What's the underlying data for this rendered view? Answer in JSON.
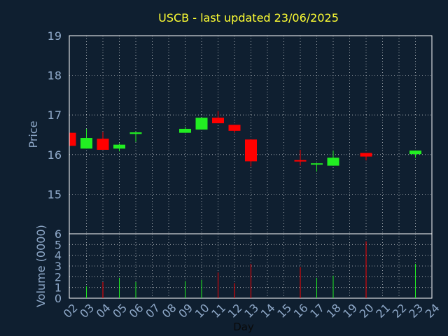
{
  "chart_data": {
    "type": "candlestick",
    "title": "USCB - last updated 23/06/2025",
    "xlabel": "Day",
    "ylabel_price": "Price",
    "ylabel_volume": "Volume (0000)",
    "x_ticks": [
      "02",
      "03",
      "04",
      "05",
      "06",
      "07",
      "08",
      "09",
      "10",
      "11",
      "12",
      "13",
      "14",
      "15",
      "16",
      "17",
      "18",
      "19",
      "20",
      "21",
      "22",
      "23",
      "24"
    ],
    "price_ylim": [
      14.0,
      19.0
    ],
    "price_y_ticks": [
      "15",
      "16",
      "17",
      "18",
      "19"
    ],
    "volume_ylim": [
      0,
      6
    ],
    "volume_y_ticks": [
      "0",
      "1",
      "2",
      "3",
      "4",
      "5",
      "6"
    ],
    "grid": true,
    "colors": {
      "background": "#0f1f30",
      "up": "#22ee22",
      "down": "#ff0000",
      "axis_text": "#8fa9c9",
      "title": "#ffff33",
      "frame": "#ffffff"
    },
    "candles": [
      {
        "day": "02",
        "open": 16.55,
        "high": 16.55,
        "low": 16.22,
        "close": 16.22,
        "volume": 0.0
      },
      {
        "day": "03",
        "open": 16.15,
        "high": 16.65,
        "low": 16.15,
        "close": 16.42,
        "volume": 1.1
      },
      {
        "day": "04",
        "open": 16.4,
        "high": 16.57,
        "low": 16.12,
        "close": 16.12,
        "volume": 1.5
      },
      {
        "day": "05",
        "open": 16.15,
        "high": 16.28,
        "low": 16.08,
        "close": 16.25,
        "volume": 1.9
      },
      {
        "day": "06",
        "open": 16.52,
        "high": 16.57,
        "low": 16.32,
        "close": 16.56,
        "volume": 1.5
      },
      {
        "day": "09",
        "open": 16.55,
        "high": 16.7,
        "low": 16.55,
        "close": 16.65,
        "volume": 1.6
      },
      {
        "day": "10",
        "open": 16.63,
        "high": 16.93,
        "low": 16.63,
        "close": 16.93,
        "volume": 1.7
      },
      {
        "day": "11",
        "open": 16.93,
        "high": 17.1,
        "low": 16.79,
        "close": 16.79,
        "volume": 2.4
      },
      {
        "day": "12",
        "open": 16.75,
        "high": 16.75,
        "low": 16.55,
        "close": 16.6,
        "volume": 1.4
      },
      {
        "day": "13",
        "open": 16.38,
        "high": 16.38,
        "low": 15.7,
        "close": 15.83,
        "volume": 3.2
      },
      {
        "day": "16",
        "open": 15.86,
        "high": 16.12,
        "low": 15.72,
        "close": 15.85,
        "volume": 2.9
      },
      {
        "day": "17",
        "open": 15.76,
        "high": 15.78,
        "low": 15.57,
        "close": 15.78,
        "volume": 1.9
      },
      {
        "day": "18",
        "open": 15.72,
        "high": 16.1,
        "low": 15.72,
        "close": 15.92,
        "volume": 2.1
      },
      {
        "day": "20",
        "open": 16.04,
        "high": 16.04,
        "low": 15.85,
        "close": 15.95,
        "volume": 5.3
      },
      {
        "day": "23",
        "open": 16.01,
        "high": 16.1,
        "low": 15.92,
        "close": 16.1,
        "volume": 3.2
      }
    ]
  }
}
